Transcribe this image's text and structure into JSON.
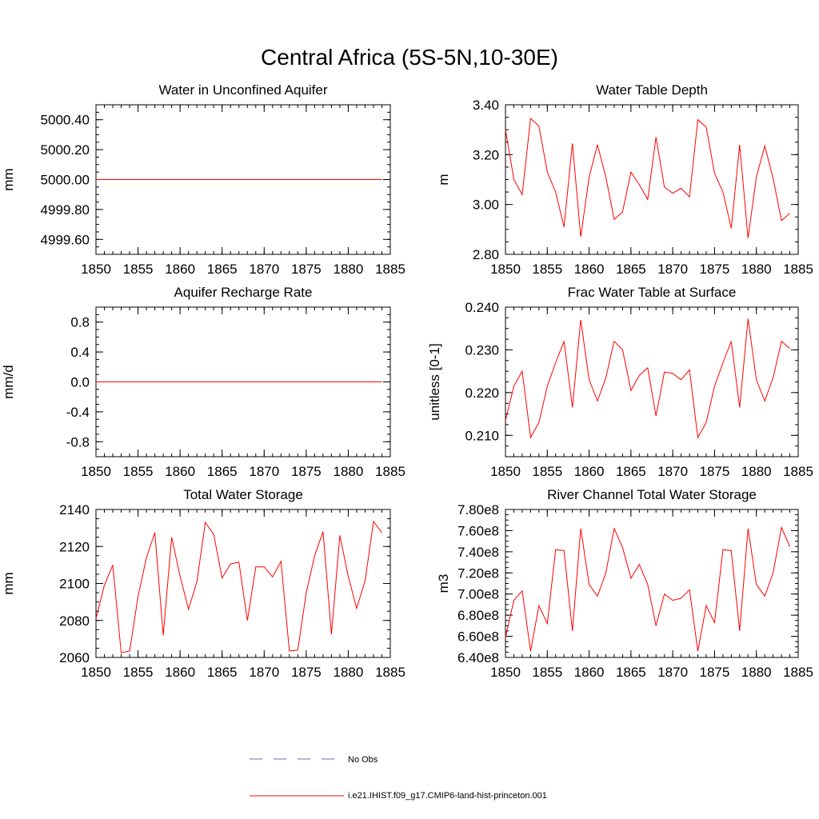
{
  "title": "Central Africa (5S-5N,10-30E)",
  "legend": [
    {
      "label": "No Obs",
      "color": "#6f6fc0",
      "style": "dashed"
    },
    {
      "label": "i.e21.IHIST.f09_g17.CMIP6-land-hist-princeton.001",
      "color": "#ff0000",
      "style": "solid"
    }
  ],
  "chart_data": [
    {
      "type": "line",
      "title": "Water in Unconfined Aquifer",
      "xlabel": "",
      "ylabel": "mm",
      "xlim": [
        1850,
        1885
      ],
      "ylim": [
        4999.5,
        5000.5
      ],
      "xticks": [
        1850,
        1855,
        1860,
        1865,
        1870,
        1875,
        1880,
        1885
      ],
      "yticks": [
        4999.6,
        4999.8,
        5000.0,
        5000.2,
        5000.4
      ],
      "ytick_labels": [
        "4999.60",
        "4999.80",
        "5000.00",
        "5000.20",
        "5000.40"
      ],
      "series": [
        {
          "color": "#ff0000",
          "x": [
            1850,
            1884
          ],
          "values": [
            5000.0,
            5000.0
          ]
        }
      ]
    },
    {
      "type": "line",
      "title": "Water Table Depth",
      "xlabel": "",
      "ylabel": "m",
      "xlim": [
        1850,
        1885
      ],
      "ylim": [
        2.8,
        3.4
      ],
      "xticks": [
        1850,
        1855,
        1860,
        1865,
        1870,
        1875,
        1880,
        1885
      ],
      "yticks": [
        2.8,
        3.0,
        3.2,
        3.4
      ],
      "ytick_labels": [
        "2.80",
        "3.00",
        "3.20",
        "3.40"
      ],
      "series": [
        {
          "color": "#ff0000",
          "x": [
            1850,
            1851,
            1852,
            1853,
            1854,
            1855,
            1856,
            1857,
            1858,
            1859,
            1860,
            1861,
            1862,
            1863,
            1864,
            1865,
            1866,
            1867,
            1868,
            1869,
            1870,
            1871,
            1872,
            1873,
            1874,
            1875,
            1876,
            1877,
            1878,
            1879,
            1880,
            1881,
            1882,
            1883,
            1884
          ],
          "values": [
            3.3,
            3.1,
            3.04,
            3.345,
            3.315,
            3.13,
            3.05,
            2.91,
            3.245,
            2.87,
            3.11,
            3.24,
            3.11,
            2.94,
            2.97,
            3.13,
            3.08,
            3.02,
            3.27,
            3.07,
            3.045,
            3.065,
            3.03,
            3.34,
            3.31,
            3.125,
            3.05,
            2.905,
            3.24,
            2.865,
            3.11,
            3.235,
            3.105,
            2.935,
            2.965
          ]
        }
      ]
    },
    {
      "type": "line",
      "title": "Aquifer Recharge Rate",
      "xlabel": "",
      "ylabel": "mm/d",
      "xlim": [
        1850,
        1885
      ],
      "ylim": [
        -1.0,
        1.0
      ],
      "xticks": [
        1850,
        1855,
        1860,
        1865,
        1870,
        1875,
        1880,
        1885
      ],
      "yticks": [
        -0.8,
        -0.4,
        0.0,
        0.4,
        0.8
      ],
      "ytick_labels": [
        "-0.8",
        "-0.4",
        "0.0",
        "0.4",
        "0.8"
      ],
      "series": [
        {
          "color": "#ff0000",
          "x": [
            1850,
            1884
          ],
          "values": [
            0.0,
            0.0
          ]
        }
      ]
    },
    {
      "type": "line",
      "title": "Frac Water Table at Surface",
      "xlabel": "",
      "ylabel": "unitless [0-1]",
      "xlim": [
        1850,
        1885
      ],
      "ylim": [
        0.205,
        0.24
      ],
      "xticks": [
        1850,
        1855,
        1860,
        1865,
        1870,
        1875,
        1880,
        1885
      ],
      "yticks": [
        0.21,
        0.22,
        0.23,
        0.24
      ],
      "ytick_labels": [
        "0.210",
        "0.220",
        "0.230",
        "0.240"
      ],
      "series": [
        {
          "color": "#ff0000",
          "x": [
            1850,
            1851,
            1852,
            1853,
            1854,
            1855,
            1856,
            1857,
            1858,
            1859,
            1860,
            1861,
            1862,
            1863,
            1864,
            1865,
            1866,
            1867,
            1868,
            1869,
            1870,
            1871,
            1872,
            1873,
            1874,
            1875,
            1876,
            1877,
            1878,
            1879,
            1880,
            1881,
            1882,
            1883,
            1884
          ],
          "values": [
            0.2135,
            0.2215,
            0.225,
            0.2095,
            0.213,
            0.2215,
            0.227,
            0.232,
            0.2165,
            0.237,
            0.223,
            0.218,
            0.2235,
            0.232,
            0.23,
            0.2205,
            0.224,
            0.2258,
            0.2145,
            0.2248,
            0.2245,
            0.223,
            0.2253,
            0.2095,
            0.213,
            0.2215,
            0.227,
            0.232,
            0.2165,
            0.2373,
            0.223,
            0.218,
            0.2235,
            0.232,
            0.2303
          ]
        }
      ]
    },
    {
      "type": "line",
      "title": "Total Water Storage",
      "xlabel": "",
      "ylabel": "mm",
      "xlim": [
        1850,
        1885
      ],
      "ylim": [
        2060,
        2140
      ],
      "xticks": [
        1850,
        1855,
        1860,
        1865,
        1870,
        1875,
        1880,
        1885
      ],
      "yticks": [
        2060,
        2080,
        2100,
        2120,
        2140
      ],
      "ytick_labels": [
        "2060",
        "2080",
        "2100",
        "2120",
        "2140"
      ],
      "series": [
        {
          "color": "#ff0000",
          "x": [
            1850,
            1851,
            1852,
            1853,
            1854,
            1855,
            1856,
            1857,
            1858,
            1859,
            1860,
            1861,
            1862,
            1863,
            1864,
            1865,
            1866,
            1867,
            1868,
            1869,
            1870,
            1871,
            1872,
            1873,
            1874,
            1875,
            1876,
            1877,
            1878,
            1879,
            1880,
            1881,
            1882,
            1883,
            1884
          ],
          "values": [
            2081,
            2099,
            2110,
            2062.5,
            2063.5,
            2093,
            2114,
            2127.5,
            2072,
            2125,
            2104,
            2086,
            2101,
            2133,
            2126.5,
            2103,
            2110.5,
            2111.5,
            2080,
            2109,
            2109,
            2103.5,
            2112,
            2063.5,
            2064,
            2095,
            2115,
            2128,
            2072.5,
            2126,
            2104,
            2086.5,
            2101.5,
            2133.5,
            2127.5
          ]
        }
      ]
    },
    {
      "type": "line",
      "title": "River Channel Total Water Storage",
      "xlabel": "",
      "ylabel": "m3",
      "xlim": [
        1850,
        1885
      ],
      "ylim": [
        640000000.0,
        780000000.0
      ],
      "xticks": [
        1850,
        1855,
        1860,
        1865,
        1870,
        1875,
        1880,
        1885
      ],
      "yticks": [
        640000000.0,
        660000000.0,
        680000000.0,
        700000000.0,
        720000000.0,
        740000000.0,
        760000000.0,
        780000000.0
      ],
      "ytick_labels": [
        "6.40e8",
        "6.60e8",
        "6.80e8",
        "7.00e8",
        "7.20e8",
        "7.40e8",
        "7.60e8",
        "7.80e8"
      ],
      "series": [
        {
          "color": "#ff0000",
          "x": [
            1850,
            1851,
            1852,
            1853,
            1854,
            1855,
            1856,
            1857,
            1858,
            1859,
            1860,
            1861,
            1862,
            1863,
            1864,
            1865,
            1866,
            1867,
            1868,
            1869,
            1870,
            1871,
            1872,
            1873,
            1874,
            1875,
            1876,
            1877,
            1878,
            1879,
            1880,
            1881,
            1882,
            1883,
            1884
          ],
          "values": [
            659000000.0,
            694000000.0,
            703000000.0,
            646000000.0,
            689000000.0,
            672000000.0,
            742000000.0,
            741000000.0,
            665000000.0,
            762000000.0,
            709000000.0,
            698000000.0,
            720000000.0,
            762000000.0,
            744000000.0,
            715000000.0,
            728000000.0,
            709000000.0,
            670000000.0,
            700000000.0,
            694000000.0,
            696000000.0,
            704000000.0,
            646000000.0,
            689000000.0,
            673000000.0,
            742000000.0,
            741000000.0,
            665000000.0,
            762000000.0,
            709000000.0,
            698000000.0,
            720000000.0,
            763000000.0,
            745000000.0
          ]
        }
      ]
    }
  ]
}
